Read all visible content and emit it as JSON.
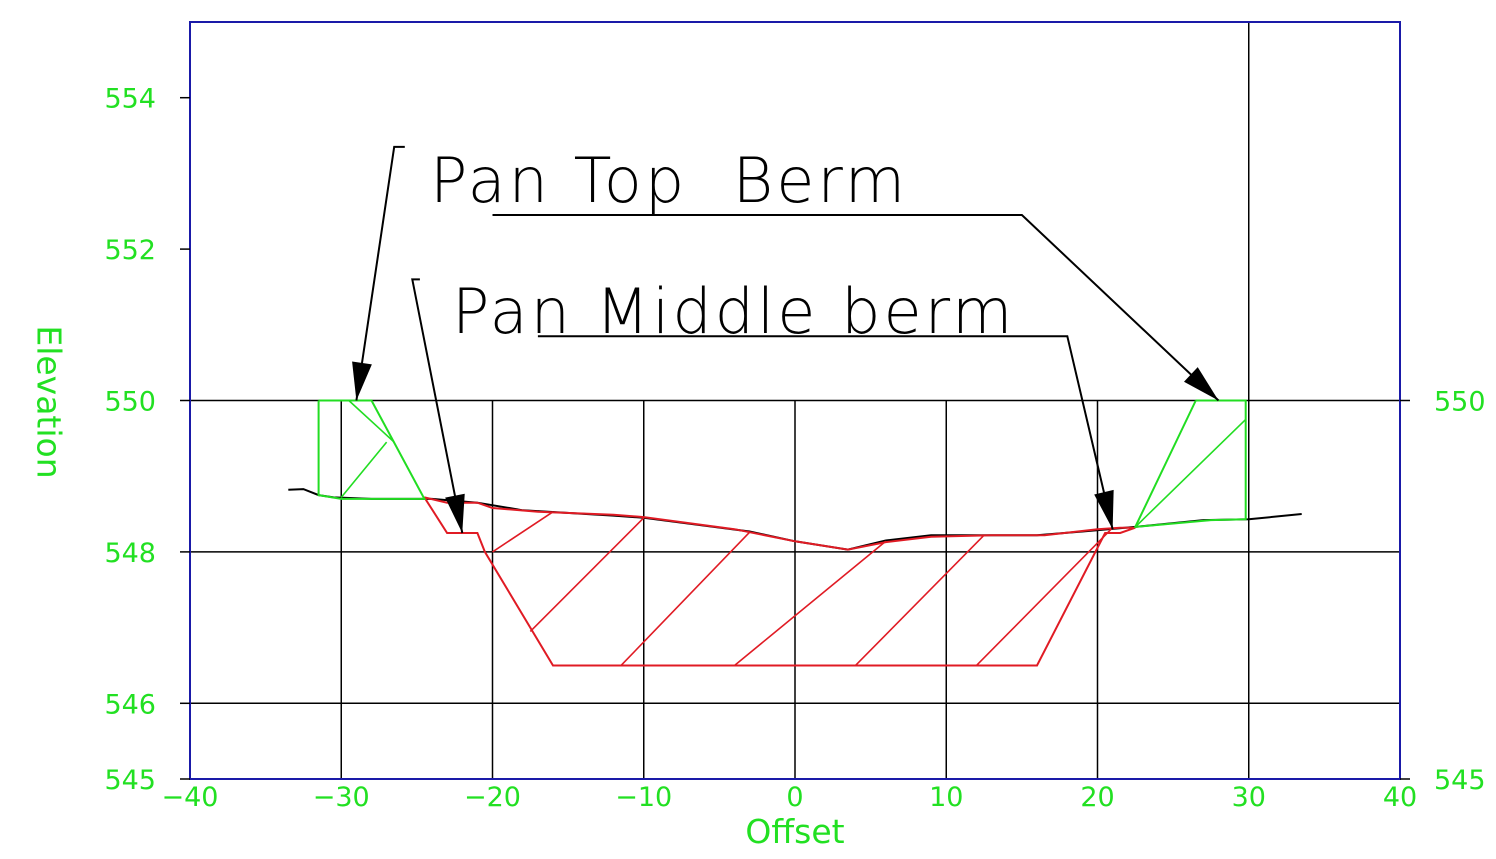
{
  "chart_data": {
    "type": "line",
    "xlabel": "Offset",
    "ylabel": "Elevation",
    "xlim": [
      -40,
      40
    ],
    "ylim": [
      545,
      555
    ],
    "x_ticks": [
      -40,
      -30,
      -20,
      -10,
      0,
      10,
      20,
      30,
      40
    ],
    "x_tick_labels": [
      "−40",
      "−30",
      "−20",
      "−10",
      "0",
      "10",
      "20",
      "30",
      "40"
    ],
    "y_ticks": [
      545,
      546,
      548,
      550,
      552,
      554
    ],
    "y_tick_labels": [
      "545",
      "546",
      "548",
      "550",
      "552",
      "554"
    ],
    "right_y_ticks": [
      545,
      550
    ],
    "right_y_tick_labels": [
      "545",
      "550"
    ],
    "grid": {
      "horizontal_levels": [
        546,
        548,
        550
      ],
      "vertical_offsets": [
        -30,
        -20,
        -10,
        0,
        10,
        20,
        30
      ]
    },
    "colors": {
      "frame": "#1a1aa8",
      "labels": "#22e022",
      "ground": "#000000",
      "pan_middle_berm": "#e01b24",
      "pan_top_berm": "#22dd22"
    },
    "series": [
      {
        "role": "existing ground",
        "color": "#000000",
        "points": [
          [
            -33.5,
            548.82
          ],
          [
            -32.5,
            548.83
          ],
          [
            -31.5,
            548.75
          ],
          [
            -30.5,
            548.72
          ],
          [
            -28.0,
            548.7
          ],
          [
            -24.0,
            548.7
          ],
          [
            -21.0,
            548.65
          ],
          [
            -18.0,
            548.55
          ],
          [
            -12.0,
            548.48
          ],
          [
            -10.0,
            548.45
          ],
          [
            -3.0,
            548.27
          ],
          [
            0.0,
            548.14
          ],
          [
            3.5,
            548.03
          ],
          [
            6.0,
            548.15
          ],
          [
            9.0,
            548.22
          ],
          [
            16.0,
            548.22
          ],
          [
            19.0,
            548.27
          ],
          [
            22.5,
            548.33
          ],
          [
            27.0,
            548.42
          ],
          [
            30.0,
            548.43
          ],
          [
            33.5,
            548.5
          ]
        ]
      },
      {
        "role": "pan middle berm",
        "color": "#e01b24",
        "outline": [
          [
            -24.5,
            548.72
          ],
          [
            -23.0,
            548.65
          ],
          [
            -21.0,
            548.65
          ],
          [
            -20.0,
            548.58
          ],
          [
            -17.0,
            548.53
          ],
          [
            -12.0,
            548.49
          ],
          [
            -10.0,
            548.46
          ],
          [
            -4.0,
            548.3
          ],
          [
            -3.0,
            548.26
          ],
          [
            0.0,
            548.14
          ],
          [
            3.5,
            548.03
          ],
          [
            6.0,
            548.13
          ],
          [
            9.0,
            548.2
          ],
          [
            13.0,
            548.22
          ],
          [
            16.5,
            548.22
          ],
          [
            20.0,
            548.3
          ],
          [
            21.5,
            548.32
          ],
          [
            22.5,
            548.32
          ],
          [
            21.5,
            548.25
          ],
          [
            20.5,
            548.25
          ],
          [
            16.0,
            546.5
          ],
          [
            -16.0,
            546.5
          ],
          [
            -20.5,
            548.0
          ],
          [
            -21.0,
            548.25
          ],
          [
            -23.0,
            548.25
          ],
          [
            -24.5,
            548.72
          ]
        ],
        "hatch": [
          [
            [
              -20.0,
              548.0
            ],
            [
              -16.0,
              548.53
            ]
          ],
          [
            [
              -17.5,
              546.95
            ],
            [
              -10.0,
              548.45
            ]
          ],
          [
            [
              -11.5,
              546.5
            ],
            [
              -3.0,
              548.26
            ]
          ],
          [
            [
              -4.0,
              546.5
            ],
            [
              6.0,
              548.14
            ]
          ],
          [
            [
              4.0,
              546.5
            ],
            [
              12.5,
              548.22
            ]
          ],
          [
            [
              12.0,
              546.5
            ],
            [
              21.0,
              548.32
            ]
          ]
        ]
      },
      {
        "role": "pan top berm left",
        "color": "#22dd22",
        "outline": [
          [
            -31.5,
            550.0
          ],
          [
            -28.0,
            550.0
          ],
          [
            -24.5,
            548.7
          ],
          [
            -30.0,
            548.7
          ],
          [
            -31.5,
            548.75
          ],
          [
            -31.5,
            550.0
          ]
        ],
        "hatch": [
          [
            [
              -30.0,
              548.72
            ],
            [
              -27.0,
              549.45
            ]
          ],
          [
            [
              -29.5,
              550.0
            ],
            [
              -26.5,
              549.45
            ]
          ]
        ]
      },
      {
        "role": "pan top berm right",
        "color": "#22dd22",
        "outline": [
          [
            26.5,
            550.0
          ],
          [
            29.8,
            550.0
          ],
          [
            29.8,
            548.43
          ],
          [
            27.5,
            548.42
          ],
          [
            22.5,
            548.33
          ],
          [
            26.5,
            550.0
          ]
        ],
        "hatch": [
          [
            [
              22.5,
              548.33
            ],
            [
              29.8,
              549.75
            ]
          ],
          [
            [
              26.5,
              550.0
            ],
            [
              29.8,
              550.0
            ]
          ]
        ]
      }
    ],
    "annotations": [
      {
        "text": "Pan Top  Berm",
        "leaders": [
          {
            "points": [
              [
                -25.8,
                553.35
              ],
              [
                -26.5,
                553.35
              ],
              [
                -29.0,
                550.0
              ]
            ]
          },
          {
            "points": [
              -20.0,
              552.45
            ],
            "to": [
              [
                15.0,
                552.45
              ],
              [
                28.0,
                550.0
              ]
            ]
          }
        ]
      },
      {
        "text": "Pan Middle berm",
        "leaders": [
          {
            "points": [
              [
                -24.8,
                551.6
              ],
              [
                -25.3,
                551.6
              ],
              [
                -22.0,
                548.25
              ]
            ]
          },
          {
            "points": [
              -17.0,
              550.85
            ],
            "to": [
              [
                18.0,
                550.85
              ],
              [
                21.0,
                548.3
              ]
            ]
          }
        ]
      }
    ]
  }
}
